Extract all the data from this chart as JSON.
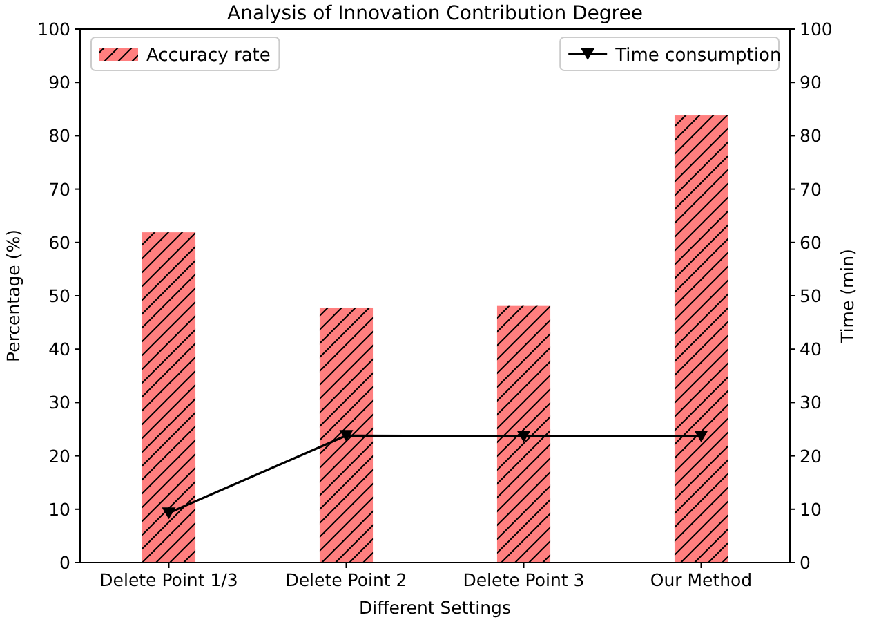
{
  "chart_data": {
    "type": "bar",
    "title": "Analysis of Innovation Contribution Degree",
    "xlabel": "Different Settings",
    "ylabel": "Percentage (%)",
    "y2label": "Time (min)",
    "categories": [
      "Delete Point 1/3",
      "Delete Point 2",
      "Delete Point 3",
      "Our Method"
    ],
    "series": [
      {
        "name": "Accuracy rate",
        "color": "#ff7f7f",
        "values": [
          61.9,
          47.8,
          48.1,
          83.8
        ]
      },
      {
        "name": "Time consumption",
        "type": "line",
        "axis": "y2",
        "color": "#000000",
        "marker": "triangle",
        "values": [
          9.3,
          23.8,
          23.7,
          23.7
        ]
      }
    ],
    "ylim": [
      0,
      100
    ],
    "yticks": [
      0,
      10,
      20,
      30,
      40,
      50,
      60,
      70,
      80,
      90,
      100
    ],
    "y2lim": [
      0,
      100
    ],
    "y2ticks": [
      0,
      10,
      20,
      30,
      40,
      50,
      60,
      70,
      80,
      90,
      100
    ],
    "legend": "top",
    "grid": false
  }
}
